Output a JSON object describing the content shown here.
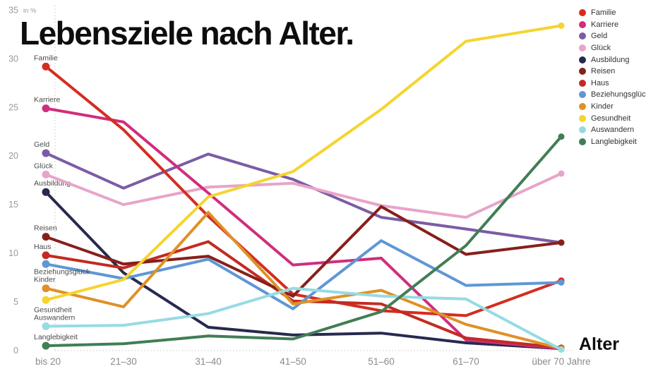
{
  "title": "Lebensziele nach Alter.",
  "axis": {
    "unit_label": "in %",
    "x_label": "Alter",
    "y_ticks": [
      0,
      5,
      10,
      15,
      20,
      25,
      30,
      35
    ]
  },
  "chart_data": {
    "type": "line",
    "title": "Lebensziele nach Alter.",
    "xlabel": "Alter",
    "ylabel": "in %",
    "ylim": [
      0,
      35
    ],
    "grid": false,
    "legend_position": "right",
    "categories": [
      "bis 20",
      "21–30",
      "31–40",
      "41–50",
      "51–60",
      "61–70",
      "über 70 Jahre"
    ],
    "series": [
      {
        "name": "Familie",
        "color": "#d42d20",
        "values": [
          29.2,
          22.7,
          13.8,
          5.8,
          4.1,
          3.6,
          7.2
        ]
      },
      {
        "name": "Karriere",
        "color": "#d02d7d",
        "values": [
          24.9,
          23.5,
          16.2,
          8.8,
          9.5,
          1.1,
          0.2
        ]
      },
      {
        "name": "Geld",
        "color": "#7b5ca6",
        "values": [
          20.3,
          16.7,
          20.2,
          17.6,
          13.7,
          12.5,
          11.1
        ]
      },
      {
        "name": "Glück",
        "color": "#e8a4c9",
        "values": [
          18.1,
          15.0,
          16.8,
          17.2,
          14.9,
          13.7,
          18.2
        ]
      },
      {
        "name": "Ausbildung",
        "color": "#27294f",
        "values": [
          16.3,
          8.0,
          2.4,
          1.6,
          1.8,
          0.8,
          0.2
        ]
      },
      {
        "name": "Reisen",
        "color": "#871f1b",
        "values": [
          11.7,
          8.9,
          9.7,
          5.6,
          14.8,
          9.9,
          11.1
        ]
      },
      {
        "name": "Haus",
        "color": "#c22b22",
        "values": [
          9.8,
          8.5,
          11.2,
          5.1,
          4.8,
          1.3,
          0.3
        ]
      },
      {
        "name": "Beziehungsglück",
        "color": "#5e97d5",
        "values": [
          8.9,
          7.4,
          9.4,
          4.3,
          11.3,
          6.7,
          7.0
        ]
      },
      {
        "name": "Kinder",
        "color": "#de9126",
        "values": [
          6.4,
          4.5,
          14.2,
          4.8,
          6.2,
          2.7,
          0.2
        ]
      },
      {
        "name": "Gesundheit",
        "color": "#f5d42e",
        "values": [
          5.2,
          7.3,
          15.8,
          18.4,
          24.8,
          31.8,
          33.4
        ]
      },
      {
        "name": "Auswandern",
        "color": "#96dbe4",
        "values": [
          2.5,
          2.6,
          3.8,
          6.4,
          5.6,
          5.3,
          0.1
        ]
      },
      {
        "name": "Langlebigkeit",
        "color": "#417e55",
        "values": [
          0.5,
          0.7,
          1.5,
          1.2,
          4.0,
          10.8,
          22.0
        ]
      }
    ]
  }
}
